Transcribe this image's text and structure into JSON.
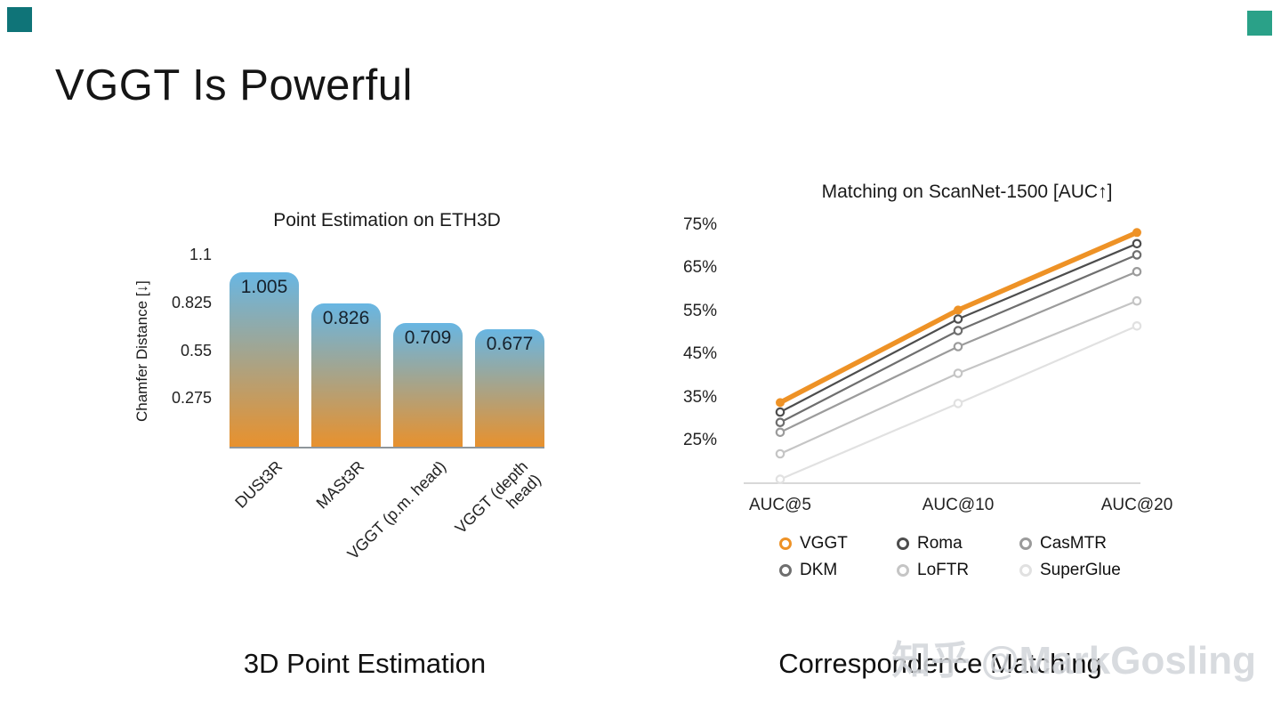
{
  "slide": {
    "title": "VGGT Is Powerful",
    "captions": {
      "left": "3D Point Estimation",
      "right": "Correspondence Matching"
    },
    "watermark": "知乎 @MarkGosling"
  },
  "chart_data": [
    {
      "type": "bar",
      "title": "Point Estimation on ETH3D",
      "ylabel": "Chamfer Distance  [↓]",
      "categories": [
        "DUSt3R",
        "MASt3R",
        "VGGT (p.m. head)",
        "VGGT (depth head)"
      ],
      "values": [
        1.005,
        0.826,
        0.709,
        0.677
      ],
      "value_labels": [
        "1.005",
        "0.826",
        "0.709",
        "0.677"
      ],
      "yticks": [
        1.1,
        0.825,
        0.55,
        0.275
      ],
      "ylim": [
        0,
        1.1
      ],
      "grid": false,
      "bar_gradient_top": "#68b6e3",
      "bar_gradient_bottom": "#e8912d"
    },
    {
      "type": "line",
      "title": "Matching on ScanNet-1500 [AUC↑]",
      "x": [
        "AUC@5",
        "AUC@10",
        "AUC@20"
      ],
      "yticks": [
        75,
        65,
        55,
        45,
        35,
        25
      ],
      "ytick_suffix": "%",
      "ylim": [
        15,
        80
      ],
      "grid": false,
      "legend_position": "bottom",
      "series": [
        {
          "name": "VGGT",
          "values": [
            34.0,
            55.5,
            73.5
          ],
          "color": "#ee9226",
          "width": 5.5,
          "marker": "filled"
        },
        {
          "name": "Roma",
          "values": [
            31.8,
            53.4,
            70.9
          ],
          "color": "#4d4d4d",
          "width": 2.2,
          "marker": "ring"
        },
        {
          "name": "DKM",
          "values": [
            29.4,
            50.7,
            68.3
          ],
          "color": "#6e6e6e",
          "width": 2.2,
          "marker": "ring"
        },
        {
          "name": "CasMTR",
          "values": [
            27.1,
            47.0,
            64.4
          ],
          "color": "#9b9b9b",
          "width": 2.2,
          "marker": "ring"
        },
        {
          "name": "LoFTR",
          "values": [
            22.1,
            40.8,
            57.6
          ],
          "color": "#c5c5c5",
          "width": 2.2,
          "marker": "ring"
        },
        {
          "name": "SuperGlue",
          "values": [
            16.2,
            33.8,
            51.8
          ],
          "color": "#e1e1e1",
          "width": 2.2,
          "marker": "ring"
        }
      ],
      "legend_order": [
        "VGGT",
        "Roma",
        "CasMTR",
        "DKM",
        "LoFTR",
        "SuperGlue"
      ]
    }
  ]
}
